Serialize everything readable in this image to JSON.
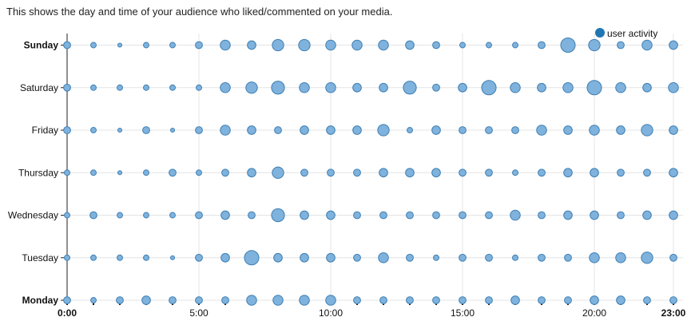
{
  "subtitle": "This shows the day and time of your audience who liked/commented on your media.",
  "chart_data": {
    "type": "scatter",
    "title": "",
    "subtitle": "This shows the day and time of your audience who liked/commented on your media.",
    "xlabel": "",
    "ylabel": "",
    "legend": {
      "label": "user activity",
      "position": "top-right"
    },
    "series_color": "#7fb2dc",
    "series_stroke": "#3d7fb4",
    "grid": true,
    "hours": [
      0,
      1,
      2,
      3,
      4,
      5,
      6,
      7,
      8,
      9,
      10,
      11,
      12,
      13,
      14,
      15,
      16,
      17,
      18,
      19,
      20,
      21,
      22,
      23
    ],
    "x_tick_labels": [
      "0:00",
      "5:00",
      "10:00",
      "15:00",
      "20:00",
      "23:00"
    ],
    "x_tick_hours": [
      0,
      5,
      10,
      15,
      20,
      23
    ],
    "days": [
      "Monday",
      "Tuesday",
      "Wednesday",
      "Thursday",
      "Friday",
      "Saturday",
      "Sunday"
    ],
    "bold_days": [
      "Monday",
      "Sunday"
    ],
    "activity": {
      "Sunday": [
        3,
        2,
        1,
        2,
        2,
        3,
        5,
        4,
        6,
        6,
        5,
        5,
        5,
        4,
        3,
        2,
        2,
        2,
        3,
        8,
        6,
        3,
        5,
        4
      ],
      "Saturday": [
        3,
        2,
        2,
        2,
        2,
        2,
        5,
        6,
        7,
        5,
        5,
        4,
        4,
        7,
        3,
        4,
        8,
        5,
        4,
        5,
        8,
        5,
        4,
        5
      ],
      "Friday": [
        3,
        2,
        1,
        3,
        1,
        3,
        5,
        4,
        3,
        4,
        4,
        4,
        6,
        2,
        4,
        3,
        3,
        3,
        5,
        4,
        5,
        4,
        6,
        4
      ],
      "Thursday": [
        2,
        2,
        1,
        2,
        3,
        2,
        3,
        4,
        6,
        3,
        3,
        3,
        4,
        4,
        4,
        3,
        3,
        2,
        3,
        4,
        4,
        3,
        3,
        4
      ],
      "Wednesday": [
        2,
        3,
        2,
        2,
        2,
        3,
        4,
        3,
        7,
        4,
        4,
        3,
        3,
        3,
        3,
        3,
        3,
        5,
        3,
        4,
        4,
        3,
        4,
        4
      ],
      "Tuesday": [
        2,
        2,
        2,
        2,
        1,
        3,
        4,
        8,
        4,
        4,
        4,
        3,
        5,
        3,
        2,
        3,
        3,
        2,
        3,
        3,
        5,
        5,
        6,
        3
      ],
      "Monday": [
        3,
        2,
        3,
        4,
        3,
        3,
        3,
        5,
        5,
        5,
        5,
        3,
        3,
        3,
        3,
        3,
        3,
        4,
        3,
        3,
        4,
        4,
        3,
        3
      ]
    }
  }
}
